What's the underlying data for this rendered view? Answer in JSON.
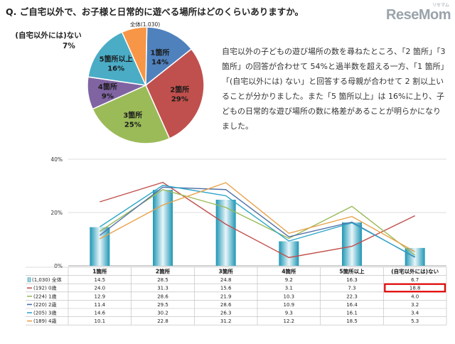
{
  "question": "Q. ご自宅以外で、お子様と日常的に遊べる場所はどのくらいありますか。",
  "logo": "ReseMom",
  "logo_ruby": "リセマム",
  "description": "自宅以外の子どもの遊び場所の数を尋ねたところ、「2 箇所」「3 箇所」の回答が合わせて 54%と過半数を超える一方、「1 箇所」「(自宅以外には) ない」と回答する母親が合わせて 2 割以上いることが分かりました。また「5 箇所以上」は 16%に上り、子どもの日常的な遊び場所の数に格差があることが明らかになりました。",
  "chart_data": [
    {
      "type": "pie",
      "title": "全体(1,030)",
      "slices": [
        {
          "label": "1箇所",
          "value": 14,
          "color": "#4f81bd"
        },
        {
          "label": "2箇所",
          "value": 29,
          "color": "#c0504d"
        },
        {
          "label": "3箇所",
          "value": 25,
          "color": "#9bbb59"
        },
        {
          "label": "4箇所",
          "value": 9,
          "color": "#8064a2"
        },
        {
          "label": "5箇所以上",
          "value": 16,
          "color": "#4bacc6"
        },
        {
          "label": "(自宅以外には)ない",
          "value": 7,
          "color": "#f79646"
        }
      ],
      "slice_labels": [
        "14%",
        "29%",
        "25%",
        "9%",
        "16%",
        "7%"
      ]
    },
    {
      "type": "bar",
      "categories": [
        "1箇所",
        "2箇所",
        "3箇所",
        "4箇所",
        "5箇所以上",
        "(自宅以外には)ない"
      ],
      "ylim": [
        0,
        40
      ],
      "y_ticks": [
        "0%",
        "20%",
        "40%"
      ],
      "grid": true,
      "bar_series": {
        "name": "(1,030) 全体",
        "values": [
          14.5,
          28.5,
          24.8,
          9.2,
          16.3,
          6.7
        ]
      },
      "line_series": [
        {
          "name": "(192) 0歳",
          "values": [
            24.0,
            31.3,
            15.6,
            3.1,
            7.3,
            18.8
          ],
          "color": "#c0504d",
          "labels": [
            "24.0",
            "31.3",
            "15.6",
            "3.1",
            "7.3",
            "18.8"
          ]
        },
        {
          "name": "(224) 1歳",
          "values": [
            12.9,
            28.6,
            21.9,
            10.3,
            22.3,
            4.0
          ],
          "color": "#9bbb59",
          "labels": [
            "12.9",
            "28.6",
            "21.9",
            "10.3",
            "22.3",
            "4.0"
          ]
        },
        {
          "name": "(220) 2歳",
          "values": [
            11.4,
            29.5,
            28.6,
            10.9,
            16.4,
            3.2
          ],
          "color": "#4f6fa6",
          "labels": [
            "11.4",
            "29.5",
            "28.6",
            "10.9",
            "16.4",
            "3.2"
          ]
        },
        {
          "name": "(205) 3歳",
          "values": [
            14.6,
            30.2,
            26.3,
            9.3,
            16.1,
            3.4
          ],
          "color": "#31a7c9",
          "labels": [
            "14.6",
            "30.2",
            "26.3",
            "9.3",
            "16.1",
            "3.4"
          ]
        },
        {
          "name": "(189) 4歳",
          "values": [
            10.1,
            22.8,
            31.2,
            12.2,
            18.5,
            5.3
          ],
          "color": "#e8a24a",
          "labels": [
            "10.1",
            "22.8",
            "31.2",
            "12.2",
            "18.5",
            "5.3"
          ]
        }
      ],
      "bar_labels": [
        "14.5",
        "28.5",
        "24.8",
        "9.2",
        "16.3",
        "6.7"
      ],
      "highlight": {
        "series": "(192) 0歳",
        "category": "(自宅以外には)ない",
        "color": "#e00000"
      }
    }
  ]
}
